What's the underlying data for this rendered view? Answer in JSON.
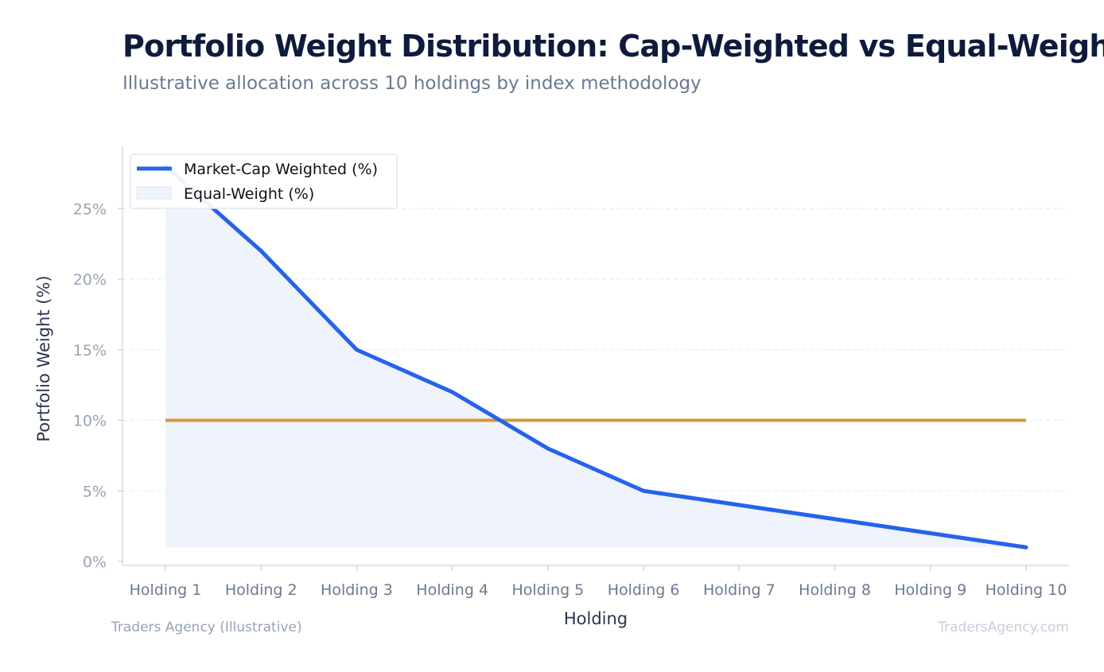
{
  "title": "Portfolio Weight Distribution: Cap-Weighted vs Equal-Weight",
  "subtitle": "Illustrative allocation across 10 holdings by index methodology",
  "footer": {
    "source": "Traders Agency (Illustrative)",
    "watermark": "TradersAgency.com"
  },
  "chart_data": {
    "type": "line",
    "categories": [
      "Holding 1",
      "Holding 2",
      "Holding 3",
      "Holding 4",
      "Holding 5",
      "Holding 6",
      "Holding 7",
      "Holding 8",
      "Holding 9",
      "Holding 10"
    ],
    "xlabel": "Holding",
    "ylabel": "Portfolio Weight (%)",
    "ylim": [
      0,
      28.5
    ],
    "yticks": [
      0,
      5,
      10,
      15,
      20,
      25
    ],
    "ytick_labels": [
      "0%",
      "5%",
      "10%",
      "15%",
      "20%",
      "25%"
    ],
    "grid": "horizontal dashed",
    "legend_position": "top-left",
    "series": [
      {
        "name": "Market-Cap Weighted (%)",
        "values": [
          28,
          22,
          15,
          12,
          8,
          5,
          4,
          3,
          2,
          1
        ],
        "color": "#2563eb",
        "fill": "#eef3fc",
        "legend_swatch": "line"
      },
      {
        "name": "Equal-Weight (%)",
        "values": [
          10,
          10,
          10,
          10,
          10,
          10,
          10,
          10,
          10,
          10
        ],
        "color": "#d4993a",
        "legend_swatch": "patch"
      }
    ]
  }
}
